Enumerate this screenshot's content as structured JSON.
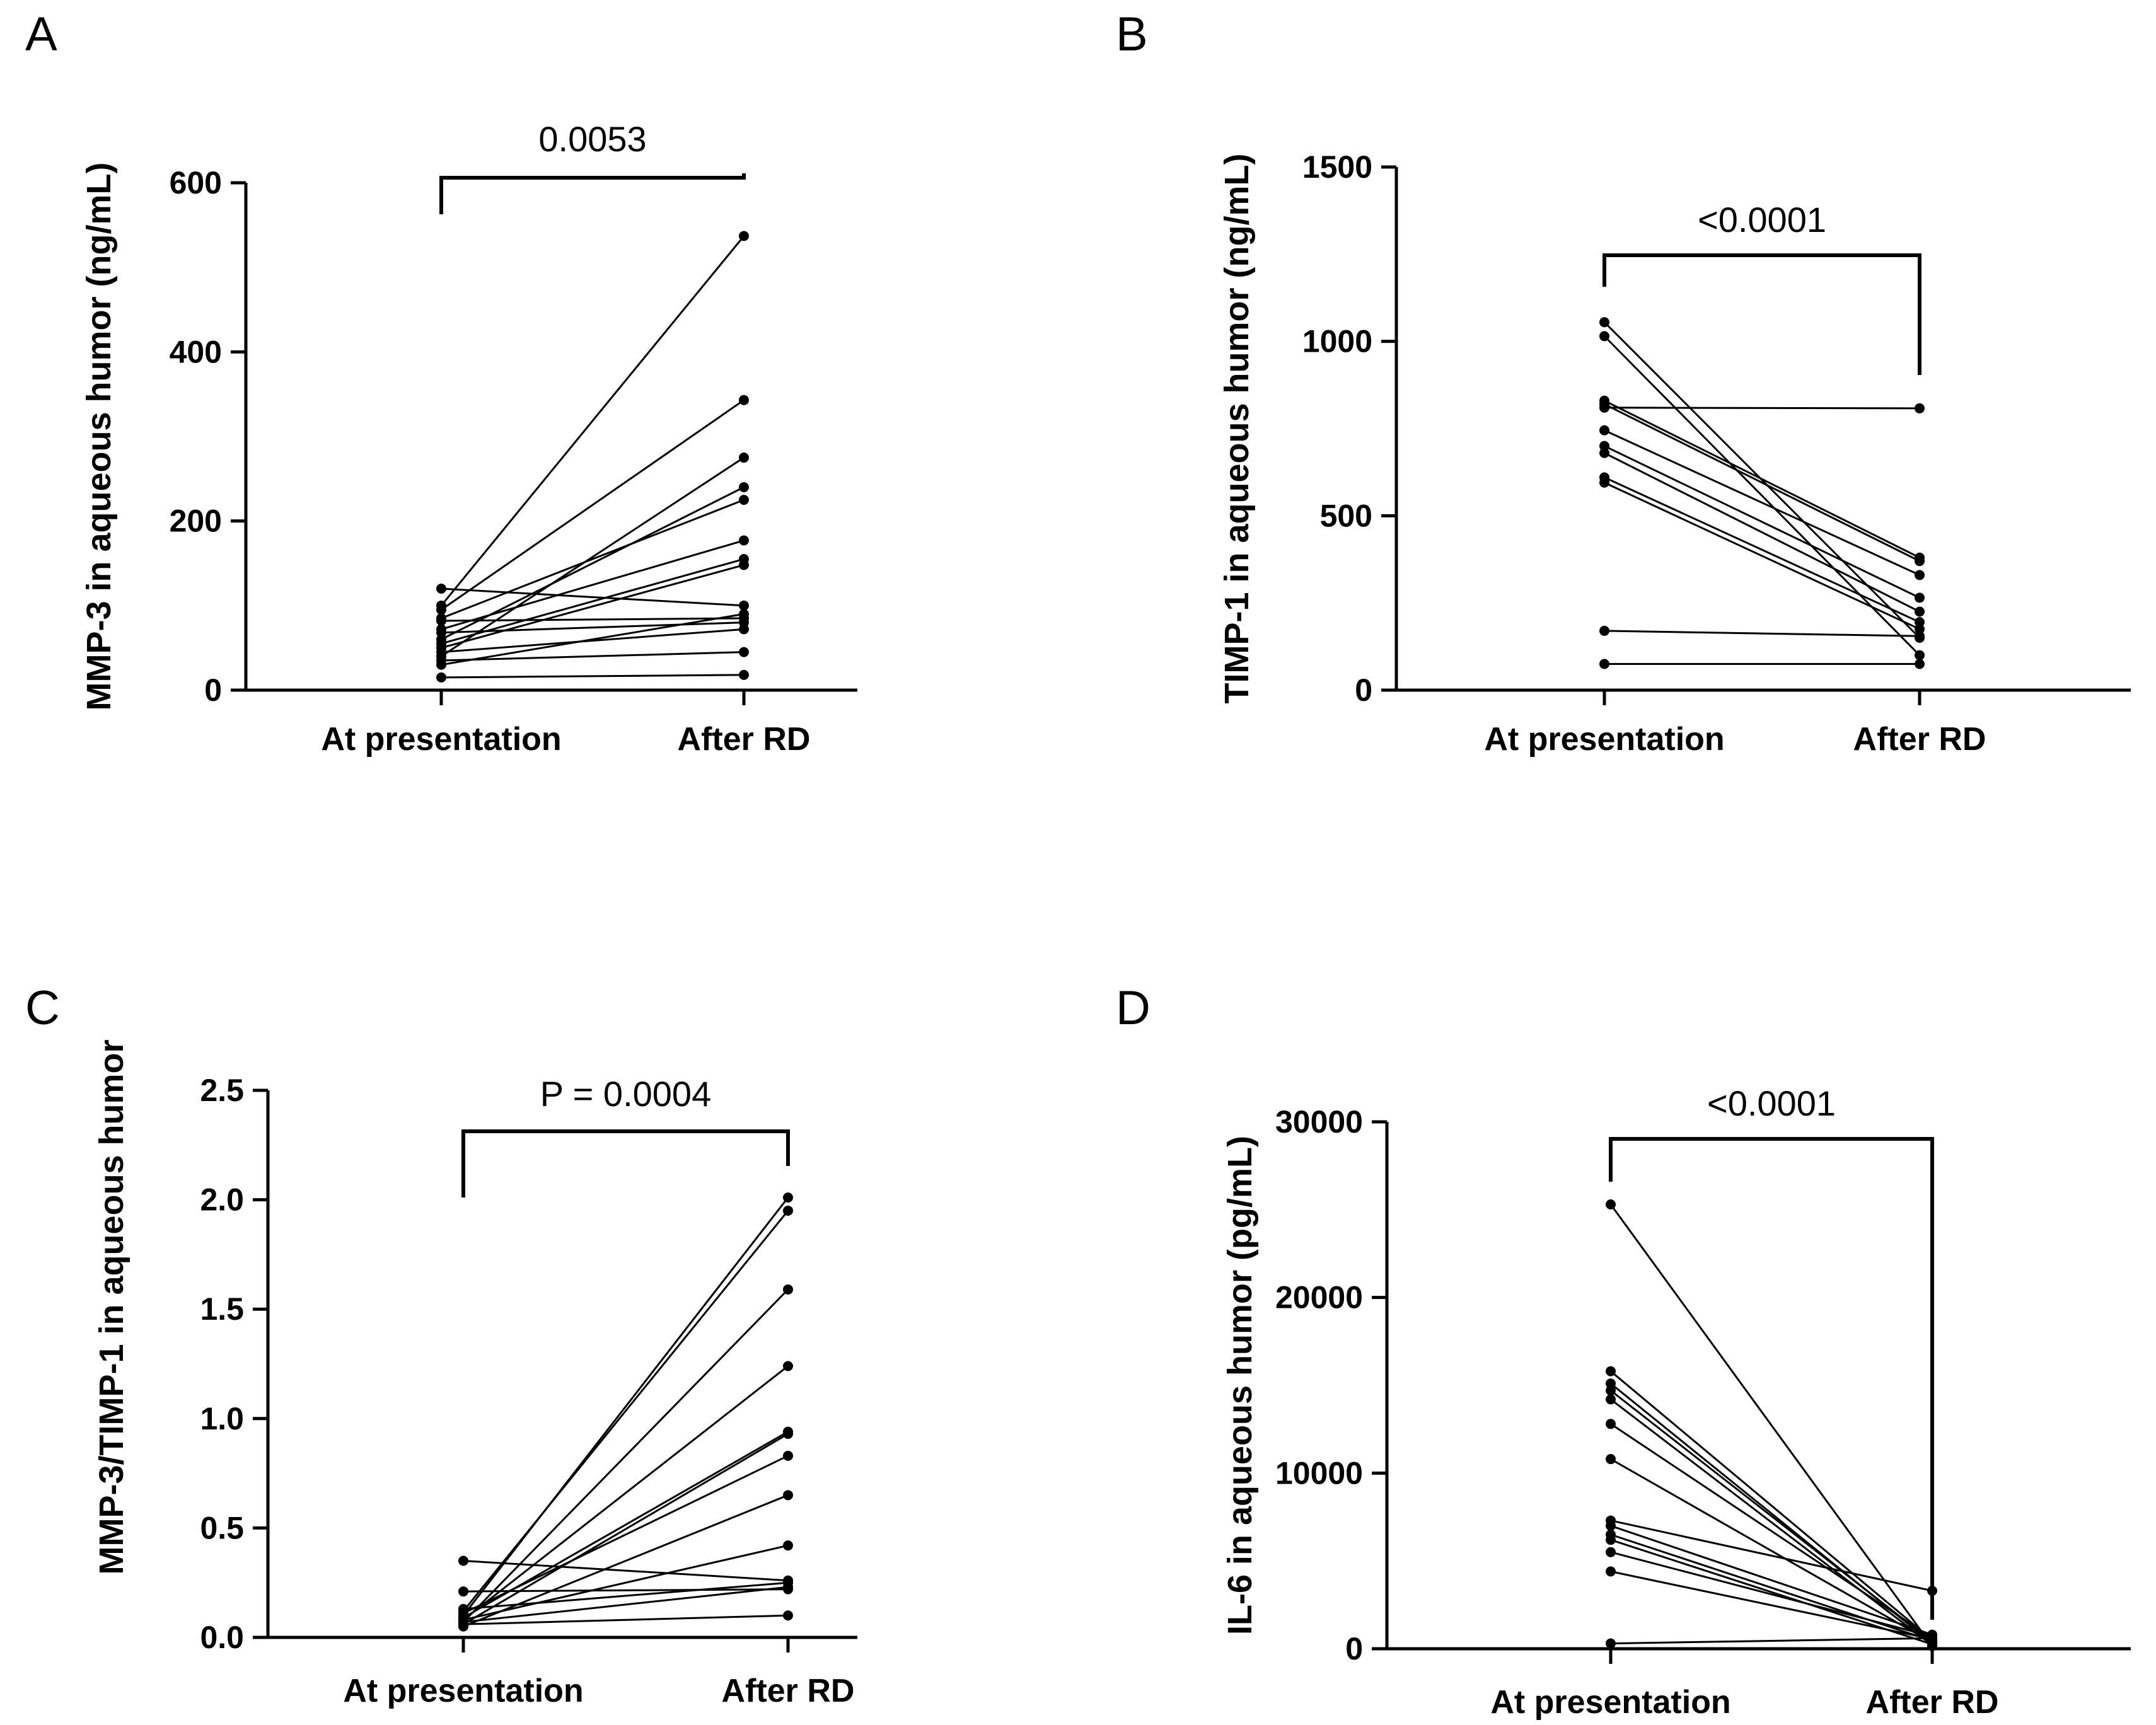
{
  "chart_data": [
    {
      "panel": "A",
      "type": "line",
      "subtype": "paired before-after plot",
      "ylabel": "MMP-3 in aqueous humor (ng/mL)",
      "categories": [
        "At presentation",
        "After RD"
      ],
      "ylim": [
        0,
        600
      ],
      "yticks": [
        0,
        200,
        400,
        600
      ],
      "ytick_labels": [
        "0",
        "200",
        "400",
        "600"
      ],
      "pvalue": "0.0053",
      "pairs": [
        [
          100,
          537
        ],
        [
          95,
          343
        ],
        [
          40,
          275
        ],
        [
          60,
          240
        ],
        [
          85,
          225
        ],
        [
          72,
          177
        ],
        [
          55,
          155
        ],
        [
          50,
          148
        ],
        [
          120,
          100
        ],
        [
          30,
          90
        ],
        [
          82,
          85
        ],
        [
          68,
          80
        ],
        [
          45,
          72
        ],
        [
          35,
          45
        ],
        [
          15,
          18
        ]
      ]
    },
    {
      "panel": "B",
      "type": "line",
      "subtype": "paired before-after plot",
      "ylabel": "TIMP-1 in aqueous humor (ng/mL)",
      "categories": [
        "At presentation",
        "After RD"
      ],
      "ylim": [
        0,
        1500
      ],
      "yticks": [
        0,
        500,
        1000,
        1500
      ],
      "ytick_labels": [
        "0",
        "500",
        "1000",
        "1500"
      ],
      "pvalue": "<0.0001",
      "pairs": [
        [
          810,
          808
        ],
        [
          1055,
          150
        ],
        [
          1015,
          100
        ],
        [
          830,
          380
        ],
        [
          820,
          370
        ],
        [
          745,
          330
        ],
        [
          700,
          265
        ],
        [
          680,
          225
        ],
        [
          610,
          195
        ],
        [
          595,
          175
        ],
        [
          170,
          155
        ],
        [
          75,
          75
        ]
      ]
    },
    {
      "panel": "C",
      "type": "line",
      "subtype": "paired before-after plot",
      "ylabel": "MMP-3/TIMP-1 in aqueous humor",
      "categories": [
        "At presentation",
        "After RD"
      ],
      "ylim": [
        0,
        2.5
      ],
      "yticks": [
        0,
        0.5,
        1.0,
        1.5,
        2.0,
        2.5
      ],
      "ytick_labels": [
        "0.0",
        "0.5",
        "1.0",
        "1.5",
        "2.0",
        "2.5"
      ],
      "pvalue": "P = 0.0004",
      "pairs": [
        [
          0.1,
          2.01
        ],
        [
          0.12,
          1.95
        ],
        [
          0.07,
          1.59
        ],
        [
          0.08,
          1.24
        ],
        [
          0.09,
          0.94
        ],
        [
          0.06,
          0.93
        ],
        [
          0.11,
          0.83
        ],
        [
          0.05,
          0.65
        ],
        [
          0.08,
          0.42
        ],
        [
          0.35,
          0.26
        ],
        [
          0.13,
          0.25
        ],
        [
          0.07,
          0.23
        ],
        [
          0.21,
          0.22
        ],
        [
          0.06,
          0.1
        ]
      ]
    },
    {
      "panel": "D",
      "type": "line",
      "subtype": "paired before-after plot",
      "ylabel": "IL-6 in aqueous humor (pg/mL)",
      "categories": [
        "At presentation",
        "After RD"
      ],
      "ylim": [
        0,
        30000
      ],
      "yticks": [
        0,
        10000,
        20000,
        30000
      ],
      "ytick_labels": [
        "0",
        "10000",
        "20000",
        "30000"
      ],
      "pvalue": "<0.0001",
      "pairs": [
        [
          25300,
          150
        ],
        [
          15800,
          500
        ],
        [
          15100,
          300
        ],
        [
          14700,
          400
        ],
        [
          14200,
          200
        ],
        [
          12800,
          600
        ],
        [
          10800,
          350
        ],
        [
          7300,
          3300
        ],
        [
          7000,
          800
        ],
        [
          6500,
          450
        ],
        [
          6200,
          250
        ],
        [
          5500,
          700
        ],
        [
          4400,
          550
        ],
        [
          300,
          600
        ]
      ]
    }
  ]
}
